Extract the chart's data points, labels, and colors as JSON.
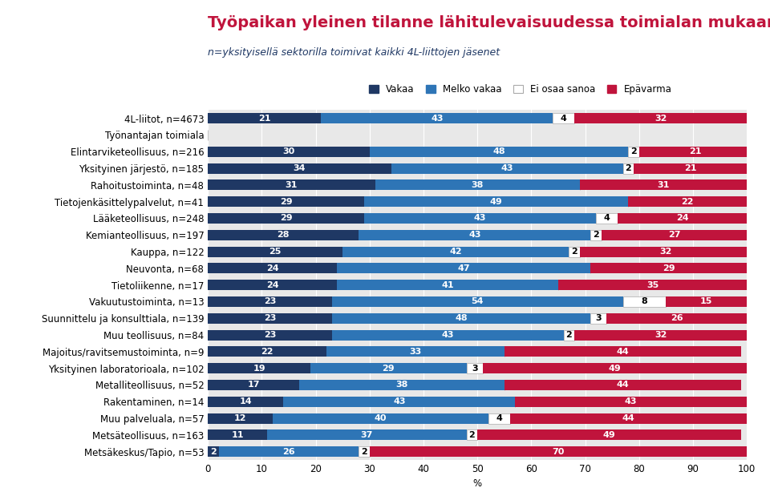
{
  "title": "Työpaikan yleinen tilanne lähitulevaisuudessa toimialan mukaan",
  "subtitle": "n=yksityisellä sektorilla toimivat kaikki 4L-liittojen jäsenet",
  "categories": [
    "4L-liitot, n=4673",
    "Työnantajan toimiala",
    "Elintarviketeollisuus, n=216",
    "Yksityinen järjestö, n=185",
    "Rahoitustoiminta, n=48",
    "Tietojenkäsittelypalvelut, n=41",
    "Lääketeollisuus, n=248",
    "Kemianteollisuus, n=197",
    "Kauppa, n=122",
    "Neuvonta, n=68",
    "Tietoliikenne, n=17",
    "Vakuutustoiminta, n=13",
    "Suunnittelu ja konsulttiala, n=139",
    "Muu teollisuus, n=84",
    "Majoitus/ravitsemustoiminta, n=9",
    "Yksityinen laboratorioala, n=102",
    "Metalliteollisuus, n=52",
    "Rakentaminen, n=14",
    "Muu palveluala, n=57",
    "Metsäteollisuus, n=163",
    "Metsäkeskus/Tapio, n=53"
  ],
  "vakaa": [
    21,
    0,
    30,
    34,
    31,
    29,
    29,
    28,
    25,
    24,
    24,
    23,
    23,
    23,
    22,
    19,
    17,
    14,
    12,
    11,
    2
  ],
  "melko_vakaa": [
    43,
    0,
    48,
    43,
    38,
    49,
    43,
    43,
    42,
    47,
    41,
    54,
    48,
    43,
    33,
    29,
    38,
    43,
    40,
    37,
    26
  ],
  "ei_osaa_sanoa": [
    4,
    0,
    2,
    2,
    0,
    0,
    4,
    2,
    2,
    0,
    0,
    8,
    3,
    2,
    0,
    3,
    0,
    0,
    4,
    2,
    2
  ],
  "epävarma": [
    32,
    0,
    21,
    21,
    31,
    22,
    24,
    27,
    32,
    29,
    35,
    15,
    26,
    32,
    44,
    49,
    44,
    43,
    44,
    49,
    70
  ],
  "color_vakaa": "#1F3864",
  "color_melko_vakaa": "#2E75B6",
  "color_ei_osaa_sanoa": "#FFFFFF",
  "color_epävarma": "#C0143C",
  "legend_labels": [
    "Vakaa",
    "Melko vakaa",
    "Ei osaa sanoa",
    "Epävarma"
  ],
  "title_color": "#C0143C",
  "subtitle_color": "#1F3864",
  "xlabel": "%",
  "xlim": [
    0,
    100
  ],
  "bar_height": 0.62,
  "title_fontsize": 14,
  "subtitle_fontsize": 9,
  "label_fontsize": 8,
  "tick_fontsize": 8.5,
  "bg_color": "#E8E8E8"
}
